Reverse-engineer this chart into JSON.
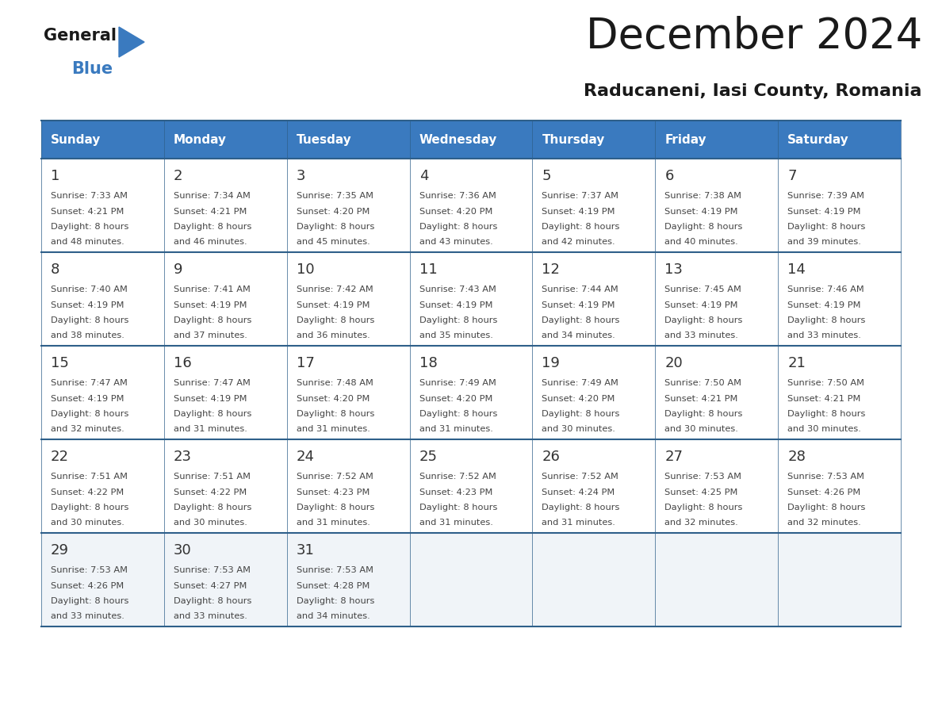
{
  "title": "December 2024",
  "subtitle": "Raducaneni, Iasi County, Romania",
  "header_bg_color": "#3a7abf",
  "header_text_color": "#ffffff",
  "days_of_week": [
    "Sunday",
    "Monday",
    "Tuesday",
    "Wednesday",
    "Thursday",
    "Friday",
    "Saturday"
  ],
  "bg_color": "#ffffff",
  "cell_bg": "#ffffff",
  "cell_bg_last": "#f0f4f8",
  "grid_line_color": "#2e5f8a",
  "day_num_color": "#333333",
  "cell_text_color": "#444444",
  "calendar_data": [
    [
      {
        "day": 1,
        "sunrise": "7:33 AM",
        "sunset": "4:21 PM",
        "daylight_hours": 8,
        "daylight_minutes": 48
      },
      {
        "day": 2,
        "sunrise": "7:34 AM",
        "sunset": "4:21 PM",
        "daylight_hours": 8,
        "daylight_minutes": 46
      },
      {
        "day": 3,
        "sunrise": "7:35 AM",
        "sunset": "4:20 PM",
        "daylight_hours": 8,
        "daylight_minutes": 45
      },
      {
        "day": 4,
        "sunrise": "7:36 AM",
        "sunset": "4:20 PM",
        "daylight_hours": 8,
        "daylight_minutes": 43
      },
      {
        "day": 5,
        "sunrise": "7:37 AM",
        "sunset": "4:19 PM",
        "daylight_hours": 8,
        "daylight_minutes": 42
      },
      {
        "day": 6,
        "sunrise": "7:38 AM",
        "sunset": "4:19 PM",
        "daylight_hours": 8,
        "daylight_minutes": 40
      },
      {
        "day": 7,
        "sunrise": "7:39 AM",
        "sunset": "4:19 PM",
        "daylight_hours": 8,
        "daylight_minutes": 39
      }
    ],
    [
      {
        "day": 8,
        "sunrise": "7:40 AM",
        "sunset": "4:19 PM",
        "daylight_hours": 8,
        "daylight_minutes": 38
      },
      {
        "day": 9,
        "sunrise": "7:41 AM",
        "sunset": "4:19 PM",
        "daylight_hours": 8,
        "daylight_minutes": 37
      },
      {
        "day": 10,
        "sunrise": "7:42 AM",
        "sunset": "4:19 PM",
        "daylight_hours": 8,
        "daylight_minutes": 36
      },
      {
        "day": 11,
        "sunrise": "7:43 AM",
        "sunset": "4:19 PM",
        "daylight_hours": 8,
        "daylight_minutes": 35
      },
      {
        "day": 12,
        "sunrise": "7:44 AM",
        "sunset": "4:19 PM",
        "daylight_hours": 8,
        "daylight_minutes": 34
      },
      {
        "day": 13,
        "sunrise": "7:45 AM",
        "sunset": "4:19 PM",
        "daylight_hours": 8,
        "daylight_minutes": 33
      },
      {
        "day": 14,
        "sunrise": "7:46 AM",
        "sunset": "4:19 PM",
        "daylight_hours": 8,
        "daylight_minutes": 33
      }
    ],
    [
      {
        "day": 15,
        "sunrise": "7:47 AM",
        "sunset": "4:19 PM",
        "daylight_hours": 8,
        "daylight_minutes": 32
      },
      {
        "day": 16,
        "sunrise": "7:47 AM",
        "sunset": "4:19 PM",
        "daylight_hours": 8,
        "daylight_minutes": 31
      },
      {
        "day": 17,
        "sunrise": "7:48 AM",
        "sunset": "4:20 PM",
        "daylight_hours": 8,
        "daylight_minutes": 31
      },
      {
        "day": 18,
        "sunrise": "7:49 AM",
        "sunset": "4:20 PM",
        "daylight_hours": 8,
        "daylight_minutes": 31
      },
      {
        "day": 19,
        "sunrise": "7:49 AM",
        "sunset": "4:20 PM",
        "daylight_hours": 8,
        "daylight_minutes": 30
      },
      {
        "day": 20,
        "sunrise": "7:50 AM",
        "sunset": "4:21 PM",
        "daylight_hours": 8,
        "daylight_minutes": 30
      },
      {
        "day": 21,
        "sunrise": "7:50 AM",
        "sunset": "4:21 PM",
        "daylight_hours": 8,
        "daylight_minutes": 30
      }
    ],
    [
      {
        "day": 22,
        "sunrise": "7:51 AM",
        "sunset": "4:22 PM",
        "daylight_hours": 8,
        "daylight_minutes": 30
      },
      {
        "day": 23,
        "sunrise": "7:51 AM",
        "sunset": "4:22 PM",
        "daylight_hours": 8,
        "daylight_minutes": 30
      },
      {
        "day": 24,
        "sunrise": "7:52 AM",
        "sunset": "4:23 PM",
        "daylight_hours": 8,
        "daylight_minutes": 31
      },
      {
        "day": 25,
        "sunrise": "7:52 AM",
        "sunset": "4:23 PM",
        "daylight_hours": 8,
        "daylight_minutes": 31
      },
      {
        "day": 26,
        "sunrise": "7:52 AM",
        "sunset": "4:24 PM",
        "daylight_hours": 8,
        "daylight_minutes": 31
      },
      {
        "day": 27,
        "sunrise": "7:53 AM",
        "sunset": "4:25 PM",
        "daylight_hours": 8,
        "daylight_minutes": 32
      },
      {
        "day": 28,
        "sunrise": "7:53 AM",
        "sunset": "4:26 PM",
        "daylight_hours": 8,
        "daylight_minutes": 32
      }
    ],
    [
      {
        "day": 29,
        "sunrise": "7:53 AM",
        "sunset": "4:26 PM",
        "daylight_hours": 8,
        "daylight_minutes": 33
      },
      {
        "day": 30,
        "sunrise": "7:53 AM",
        "sunset": "4:27 PM",
        "daylight_hours": 8,
        "daylight_minutes": 33
      },
      {
        "day": 31,
        "sunrise": "7:53 AM",
        "sunset": "4:28 PM",
        "daylight_hours": 8,
        "daylight_minutes": 34
      },
      null,
      null,
      null,
      null
    ]
  ]
}
